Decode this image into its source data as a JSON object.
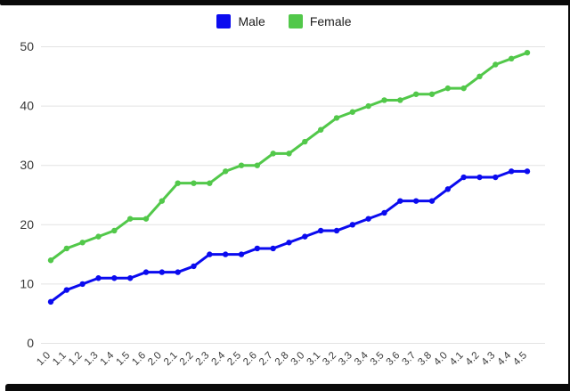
{
  "frame": {
    "border_color": "#0a0a0a",
    "background": "#ffffff"
  },
  "legend": {
    "items": [
      {
        "label": "Male",
        "color": "#0b0bef"
      },
      {
        "label": "Female",
        "color": "#52c84a"
      }
    ]
  },
  "chart_data": {
    "type": "line",
    "title": "",
    "xlabel": "",
    "ylabel": "",
    "categories": [
      "1.0",
      "1.1",
      "1.2",
      "1.3",
      "1.4",
      "1.5",
      "1.6",
      "2.0",
      "2.1",
      "2.2",
      "2.3",
      "2.4",
      "2.5",
      "2.6",
      "2.7",
      "2.8",
      "3.0",
      "3.1",
      "3.2",
      "3.3",
      "3.4",
      "3.5",
      "3.6",
      "3.7",
      "3.8",
      "4.0",
      "4.1",
      "4.2",
      "4.3",
      "4.4",
      "4.5"
    ],
    "series": [
      {
        "name": "Male",
        "color": "#0b0bef",
        "values": [
          7,
          9,
          10,
          11,
          11,
          11,
          12,
          12,
          12,
          13,
          15,
          15,
          15,
          16,
          16,
          17,
          18,
          19,
          19,
          20,
          21,
          22,
          24,
          24,
          24,
          26,
          28,
          28,
          28,
          29,
          29
        ]
      },
      {
        "name": "Female",
        "color": "#52c84a",
        "values": [
          14,
          16,
          17,
          18,
          19,
          21,
          21,
          24,
          27,
          27,
          27,
          29,
          30,
          30,
          32,
          32,
          34,
          36,
          38,
          39,
          40,
          41,
          41,
          42,
          42,
          43,
          43,
          45,
          47,
          48,
          49
        ]
      }
    ],
    "ylim": [
      0,
      50
    ],
    "yticks": [
      0,
      10,
      20,
      30,
      40,
      50
    ],
    "grid": true,
    "gridline_color": "#e3e3e3",
    "tick_label_color": "#3a3a3a",
    "legend_position": "top",
    "x_tick_rotation": -45,
    "marker": "circle"
  }
}
